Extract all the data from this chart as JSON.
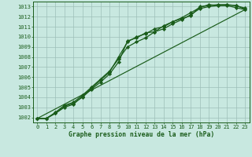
{
  "title": "Graphe pression niveau de la mer (hPa)",
  "background_color": "#c8e8e0",
  "grid_color": "#9dbfb8",
  "line_color": "#1a5c1a",
  "marker_color": "#1a5c1a",
  "xlim": [
    -0.5,
    23.5
  ],
  "ylim": [
    1001.5,
    1013.5
  ],
  "yticks": [
    1002,
    1003,
    1004,
    1005,
    1006,
    1007,
    1008,
    1009,
    1010,
    1011,
    1012,
    1013
  ],
  "xticks": [
    0,
    1,
    2,
    3,
    4,
    5,
    6,
    7,
    8,
    9,
    10,
    11,
    12,
    13,
    14,
    15,
    16,
    17,
    18,
    19,
    20,
    21,
    22,
    23
  ],
  "lines": [
    {
      "x": [
        0,
        1,
        2,
        3,
        4,
        5,
        6,
        7,
        8,
        9,
        10,
        11,
        12,
        13,
        14,
        15,
        16,
        17,
        18,
        19,
        20,
        21,
        22,
        23
      ],
      "y": [
        1001.9,
        1001.9,
        1002.4,
        1003.1,
        1003.4,
        1004.0,
        1004.8,
        1005.5,
        1006.3,
        1007.5,
        1009.6,
        1009.9,
        1010.4,
        1010.5,
        1011.1,
        1011.5,
        1011.8,
        1012.1,
        1013.0,
        1013.1,
        1013.2,
        1013.2,
        1013.1,
        1012.85
      ],
      "marker": "D",
      "markersize": 2.2,
      "linewidth": 0.9,
      "with_markers": true
    },
    {
      "x": [
        0,
        1,
        2,
        3,
        4,
        5,
        6,
        7,
        8,
        9,
        10,
        11,
        12,
        13,
        14,
        15,
        16,
        17,
        18,
        19,
        20,
        21,
        22,
        23
      ],
      "y": [
        1001.9,
        1001.9,
        1002.4,
        1003.0,
        1003.3,
        1004.1,
        1004.9,
        1005.7,
        1006.5,
        1008.0,
        1009.5,
        1010.0,
        1010.3,
        1010.8,
        1011.0,
        1011.5,
        1011.9,
        1012.4,
        1012.9,
        1013.2,
        1013.1,
        1013.15,
        1013.1,
        1012.75
      ],
      "marker": "D",
      "markersize": 2.2,
      "linewidth": 0.9,
      "with_markers": true
    },
    {
      "x": [
        0,
        1,
        2,
        3,
        4,
        5,
        6,
        7,
        8,
        9,
        10,
        11,
        12,
        13,
        14,
        15,
        16,
        17,
        18,
        19,
        20,
        21,
        22,
        23
      ],
      "y": [
        1001.9,
        1001.9,
        1002.5,
        1003.2,
        1003.5,
        1004.2,
        1005.0,
        1005.8,
        1006.6,
        1007.8,
        1009.0,
        1009.5,
        1009.9,
        1010.5,
        1010.8,
        1011.3,
        1011.7,
        1012.2,
        1012.8,
        1013.0,
        1013.1,
        1013.1,
        1012.9,
        1012.7
      ],
      "marker": "D",
      "markersize": 2.2,
      "linewidth": 0.9,
      "with_markers": true
    },
    {
      "x": [
        0,
        23
      ],
      "y": [
        1001.9,
        1012.7
      ],
      "marker": null,
      "markersize": 0,
      "linewidth": 0.85,
      "with_markers": false
    }
  ]
}
